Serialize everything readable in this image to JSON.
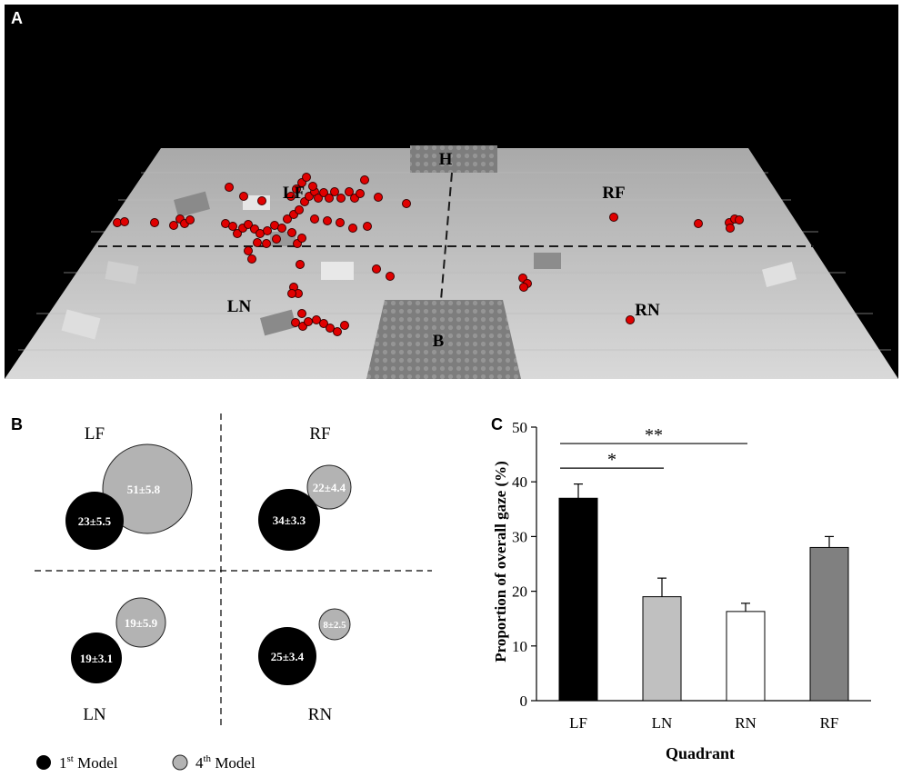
{
  "panel_a": {
    "letter": "A",
    "labels": {
      "head": "H",
      "base": "B",
      "lf": "LF",
      "rf": "RF",
      "ln": "LN",
      "rn": "RN"
    }
  },
  "panel_b": {
    "letter": "B",
    "quadrants": {
      "lf": {
        "label": "LF",
        "first": "23±5.5",
        "fourth": "51±5.8"
      },
      "rf": {
        "label": "RF",
        "first": "34±3.3",
        "fourth": "22±4.4"
      },
      "ln": {
        "label": "LN",
        "first": "19±3.1",
        "fourth": "19±5.9"
      },
      "rn": {
        "label": "RN",
        "first": "25±3.4",
        "fourth": "8±2.5"
      }
    },
    "legend": {
      "first": {
        "ord": "1",
        "sup": "st",
        "rest": " Model"
      },
      "fourth": {
        "ord": "4",
        "sup": "th",
        "rest": " Model"
      }
    },
    "colors": {
      "first": "#000000",
      "fourth": "#b3b3b3"
    }
  },
  "chart_data": {
    "letter": "C",
    "type": "bar",
    "categories": [
      "LF",
      "LN",
      "RN",
      "RF"
    ],
    "values": [
      37,
      19,
      16.3,
      28
    ],
    "errors": [
      2.6,
      3.4,
      1.5,
      2.0
    ],
    "colors": [
      "#000000",
      "#c0c0c0",
      "#ffffff",
      "#808080"
    ],
    "xlabel": "Quadrant",
    "ylabel": "Proportion of overall gaze (%)",
    "ylim": [
      0,
      50
    ],
    "yticks": [
      0,
      10,
      20,
      30,
      40,
      50
    ],
    "significance": [
      {
        "from": 0,
        "to": 1,
        "label": "*"
      },
      {
        "from": 0,
        "to": 2,
        "label": "**"
      }
    ]
  }
}
